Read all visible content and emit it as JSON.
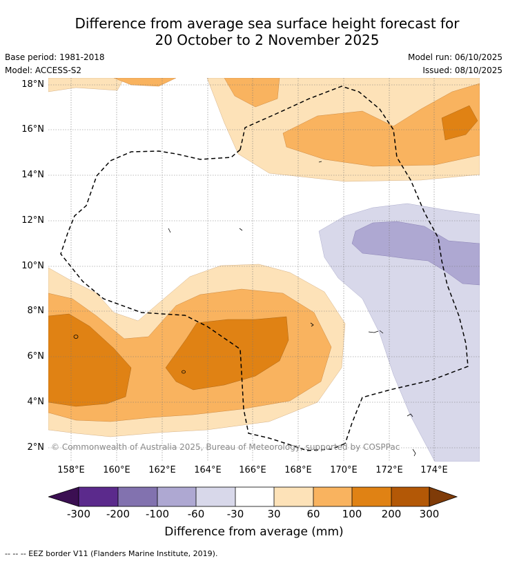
{
  "title": {
    "line1": "Difference from average sea surface height forecast for",
    "line2": "20 October to 2 November 2025"
  },
  "meta": {
    "base_period": "Base period: 1981-2018",
    "model": "Model: ACCESS-S2",
    "model_run": "Model run: 06/10/2025",
    "issued": "Issued: 08/10/2025"
  },
  "map": {
    "copyright": "© Commonwealth of Australia 2025, Bureau of Meteorology, supported by COSPPac",
    "lat_labels": [
      "18°N",
      "16°N",
      "14°N",
      "12°N",
      "10°N",
      "8°N",
      "6°N",
      "4°N",
      "2°N"
    ],
    "lon_labels": [
      "158°E",
      "160°E",
      "162°E",
      "164°E",
      "166°E",
      "168°E",
      "170°E",
      "172°E",
      "174°E"
    ],
    "colors": {
      "neg_300": "#3b0f52",
      "neg_200": "#5b2a8c",
      "neg_100": "#8272af",
      "neg_60": "#aea8d2",
      "neg_30": "#d8d8ea",
      "neutral": "#ffffff",
      "pos_30": "#fde2b8",
      "pos_60": "#f9b35f",
      "pos_100": "#e08214",
      "pos_200": "#b35806",
      "pos_300": "#7f3b08"
    }
  },
  "colorbar": {
    "ticks": [
      "-300",
      "-200",
      "-100",
      "-60",
      "-30",
      "30",
      "60",
      "100",
      "200",
      "300"
    ],
    "label": "Difference from average (mm)"
  },
  "footer": {
    "legend": "--  --  -- EEZ border V11 (Flanders Marine Institute, 2019)."
  }
}
